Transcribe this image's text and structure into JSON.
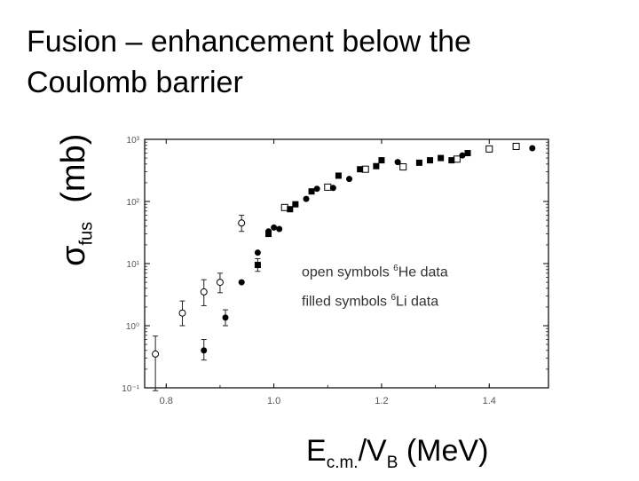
{
  "title_lines": [
    "Fusion – enhancement below the",
    "Coulomb barrier"
  ],
  "chart_data": {
    "type": "scatter",
    "xlabel_main": "E",
    "xlabel_sub1": "c.m.",
    "xlabel_mid": "/V",
    "xlabel_sub2": "B",
    "xlabel_unit": "(MeV)",
    "ylabel_symbol": "σ",
    "ylabel_sub": "fus",
    "ylabel_unit": "(mb)",
    "xlim": [
      0.76,
      1.51
    ],
    "ylim_log10": [
      -1,
      3
    ],
    "x_ticks": [
      0.8,
      1.0,
      1.2,
      1.4
    ],
    "x_tick_labels": [
      "0.8",
      "1.0",
      "1.2",
      "1.4"
    ],
    "y_ticks_log10": [
      -1,
      0,
      1,
      2,
      3
    ],
    "y_tick_labels": [
      "10⁻¹",
      "10⁰",
      "10¹",
      "10²",
      "10³"
    ],
    "legend": {
      "open_prefix": "open symbols ",
      "open_sup": "6",
      "open_suffix": "He data",
      "filled_prefix": "filled symbols ",
      "filled_sup": "6",
      "filled_suffix": "Li data"
    },
    "series": [
      {
        "name": "6He open circles",
        "marker": "open-circle",
        "points": [
          {
            "x": 0.78,
            "y": 0.35,
            "err_low": 0.09,
            "err_high": 0.68
          },
          {
            "x": 0.83,
            "y": 1.6,
            "err_low": 1.0,
            "err_high": 2.5
          },
          {
            "x": 0.87,
            "y": 3.5,
            "err_low": 2.1,
            "err_high": 5.5
          },
          {
            "x": 0.9,
            "y": 5.0,
            "err_low": 3.4,
            "err_high": 7.0
          },
          {
            "x": 0.94,
            "y": 45,
            "err_low": 33,
            "err_high": 60
          }
        ]
      },
      {
        "name": "6He open squares",
        "marker": "open-square",
        "points": [
          {
            "x": 1.02,
            "y": 80
          },
          {
            "x": 1.1,
            "y": 170
          },
          {
            "x": 1.17,
            "y": 330
          },
          {
            "x": 1.24,
            "y": 360
          },
          {
            "x": 1.34,
            "y": 480
          },
          {
            "x": 1.4,
            "y": 700
          },
          {
            "x": 1.45,
            "y": 770
          }
        ]
      },
      {
        "name": "6Li filled circles",
        "marker": "filled-circle",
        "points": [
          {
            "x": 0.87,
            "y": 0.4,
            "err_low": 0.28,
            "err_high": 0.6
          },
          {
            "x": 0.91,
            "y": 1.35,
            "err_low": 1.0,
            "err_high": 1.8
          },
          {
            "x": 0.94,
            "y": 5.0
          },
          {
            "x": 0.97,
            "y": 15
          },
          {
            "x": 0.99,
            "y": 33
          },
          {
            "x": 1.0,
            "y": 38
          },
          {
            "x": 1.01,
            "y": 36
          },
          {
            "x": 1.06,
            "y": 110
          },
          {
            "x": 1.08,
            "y": 160
          },
          {
            "x": 1.11,
            "y": 165
          },
          {
            "x": 1.14,
            "y": 230
          },
          {
            "x": 1.23,
            "y": 430
          },
          {
            "x": 1.35,
            "y": 550
          },
          {
            "x": 1.48,
            "y": 720
          }
        ]
      },
      {
        "name": "6Li filled squares",
        "marker": "filled-square",
        "points": [
          {
            "x": 0.97,
            "y": 9.5,
            "err_low": 7.5,
            "err_high": 12
          },
          {
            "x": 0.99,
            "y": 30
          },
          {
            "x": 1.03,
            "y": 75
          },
          {
            "x": 1.04,
            "y": 90
          },
          {
            "x": 1.07,
            "y": 145
          },
          {
            "x": 1.12,
            "y": 260
          },
          {
            "x": 1.16,
            "y": 330
          },
          {
            "x": 1.19,
            "y": 370
          },
          {
            "x": 1.2,
            "y": 460
          },
          {
            "x": 1.27,
            "y": 420
          },
          {
            "x": 1.29,
            "y": 460
          },
          {
            "x": 1.31,
            "y": 500
          },
          {
            "x": 1.33,
            "y": 460
          },
          {
            "x": 1.36,
            "y": 600
          }
        ]
      }
    ]
  }
}
